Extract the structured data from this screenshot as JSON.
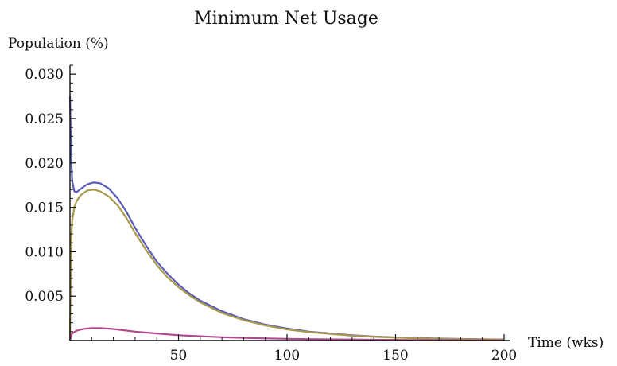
{
  "chart_data": {
    "type": "line",
    "title": "Minimum Net Usage",
    "ylabel": "Population (%)",
    "xlabel": "Time (wks)",
    "xlim": [
      0,
      200
    ],
    "ylim": [
      0,
      0.031
    ],
    "x_ticks": [
      {
        "value": 50,
        "label": "50"
      },
      {
        "value": 100,
        "label": "100"
      },
      {
        "value": 150,
        "label": "150"
      },
      {
        "value": 200,
        "label": "200"
      }
    ],
    "y_ticks": [
      {
        "value": 0.005,
        "label": "0.005"
      },
      {
        "value": 0.01,
        "label": "0.010"
      },
      {
        "value": 0.015,
        "label": "0.015"
      },
      {
        "value": 0.02,
        "label": "0.020"
      },
      {
        "value": 0.025,
        "label": "0.025"
      },
      {
        "value": 0.03,
        "label": "0.030"
      }
    ],
    "x_minor_step": 10,
    "y_minor_step": 0.001,
    "grid": false,
    "legend": "none",
    "series": [
      {
        "color": "#5b5bb8",
        "points": [
          [
            0,
            0.0275
          ],
          [
            0.5,
            0.021
          ],
          [
            1,
            0.018
          ],
          [
            2,
            0.0168
          ],
          [
            3,
            0.0167
          ],
          [
            5,
            0.0171
          ],
          [
            8,
            0.0176
          ],
          [
            11,
            0.0178
          ],
          [
            14,
            0.0177
          ],
          [
            18,
            0.0171
          ],
          [
            22,
            0.016
          ],
          [
            26,
            0.0145
          ],
          [
            30,
            0.0127
          ],
          [
            35,
            0.0107
          ],
          [
            40,
            0.0089
          ],
          [
            45,
            0.0075
          ],
          [
            50,
            0.0063
          ],
          [
            55,
            0.0053
          ],
          [
            60,
            0.0045
          ],
          [
            70,
            0.0033
          ],
          [
            80,
            0.0024
          ],
          [
            90,
            0.0018
          ],
          [
            100,
            0.00135
          ],
          [
            110,
            0.001
          ],
          [
            120,
            0.0008
          ],
          [
            130,
            0.0006
          ],
          [
            140,
            0.00045
          ],
          [
            150,
            0.00035
          ],
          [
            160,
            0.00028
          ],
          [
            170,
            0.00022
          ],
          [
            180,
            0.00018
          ],
          [
            190,
            0.00015
          ],
          [
            200,
            0.00012
          ]
        ]
      },
      {
        "color": "#a89a4a",
        "points": [
          [
            0,
            0.0
          ],
          [
            0.5,
            0.011
          ],
          [
            1,
            0.0135
          ],
          [
            2,
            0.015
          ],
          [
            3,
            0.0157
          ],
          [
            5,
            0.0164
          ],
          [
            8,
            0.0169
          ],
          [
            11,
            0.017
          ],
          [
            14,
            0.0168
          ],
          [
            18,
            0.0162
          ],
          [
            22,
            0.0152
          ],
          [
            26,
            0.0138
          ],
          [
            30,
            0.0121
          ],
          [
            35,
            0.0102
          ],
          [
            40,
            0.0085
          ],
          [
            45,
            0.0071
          ],
          [
            50,
            0.006
          ],
          [
            55,
            0.0051
          ],
          [
            60,
            0.0043
          ],
          [
            70,
            0.0031
          ],
          [
            80,
            0.0023
          ],
          [
            90,
            0.0017
          ],
          [
            100,
            0.00125
          ],
          [
            110,
            0.00095
          ],
          [
            120,
            0.00075
          ],
          [
            130,
            0.00055
          ],
          [
            140,
            0.00042
          ],
          [
            150,
            0.00033
          ],
          [
            160,
            0.00026
          ],
          [
            170,
            0.0002
          ],
          [
            180,
            0.00016
          ],
          [
            190,
            0.00013
          ],
          [
            200,
            0.0001
          ]
        ]
      },
      {
        "color": "#b04a8c",
        "points": [
          [
            0,
            0.0
          ],
          [
            1,
            0.0008
          ],
          [
            3,
            0.0011
          ],
          [
            6,
            0.0013
          ],
          [
            10,
            0.0014
          ],
          [
            14,
            0.0014
          ],
          [
            20,
            0.0013
          ],
          [
            30,
            0.001
          ],
          [
            40,
            0.0008
          ],
          [
            50,
            0.0006
          ],
          [
            60,
            0.00048
          ],
          [
            70,
            0.00038
          ],
          [
            80,
            0.0003
          ],
          [
            100,
            0.0002
          ],
          [
            120,
            0.00013
          ],
          [
            140,
            9e-05
          ],
          [
            160,
            6e-05
          ],
          [
            180,
            4e-05
          ],
          [
            200,
            3e-05
          ]
        ]
      }
    ]
  }
}
